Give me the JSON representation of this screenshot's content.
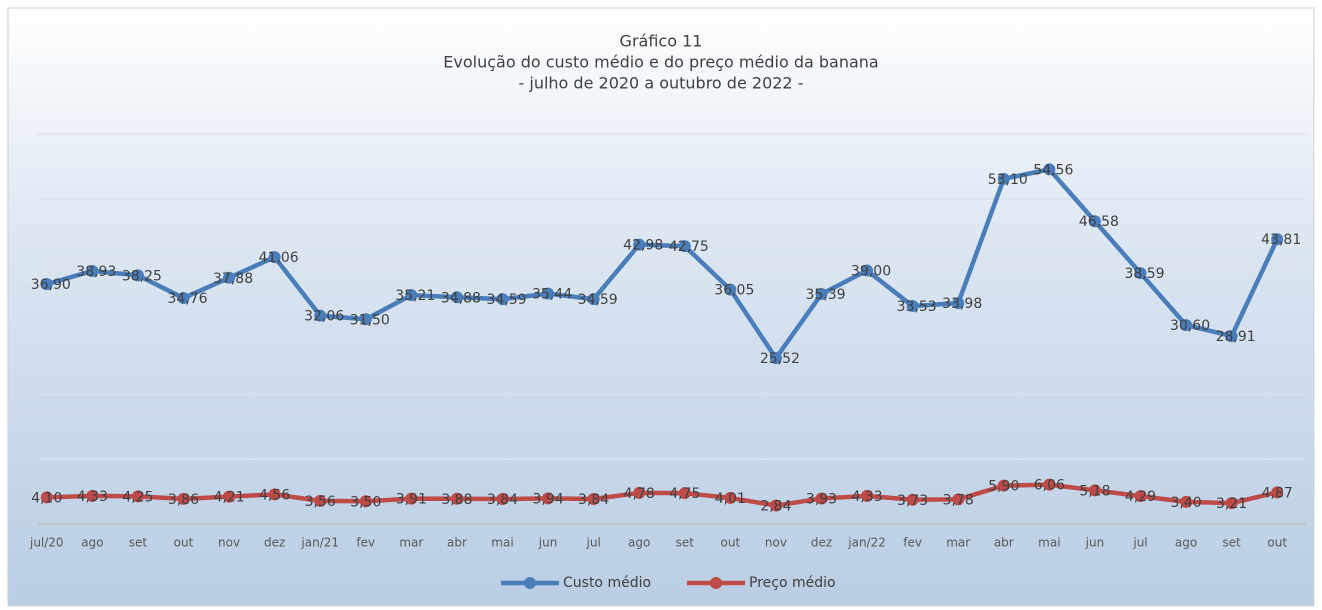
{
  "chart_data": {
    "type": "line",
    "title": [
      "Gráfico 11",
      "Evolução do custo médio e do preço médio da banana",
      "- julho de 2020 a outubro de 2022 -"
    ],
    "categories": [
      "jul/20",
      "ago",
      "set",
      "out",
      "nov",
      "dez",
      "jan/21",
      "fev",
      "mar",
      "abr",
      "mai",
      "jun",
      "jul",
      "ago",
      "set",
      "out",
      "nov",
      "dez",
      "jan/22",
      "fev",
      "mar",
      "abr",
      "mai",
      "jun",
      "jul",
      "ago",
      "set",
      "out"
    ],
    "series": [
      {
        "name": "Custo médio",
        "color": "#4a7ebb",
        "values": [
          36.9,
          38.93,
          38.25,
          34.76,
          37.88,
          41.06,
          32.06,
          31.5,
          35.21,
          34.88,
          34.59,
          35.44,
          34.59,
          42.98,
          42.75,
          36.05,
          25.52,
          35.39,
          39.0,
          33.53,
          33.98,
          53.1,
          54.56,
          46.58,
          38.59,
          30.6,
          28.91,
          43.81
        ],
        "value_labels": [
          "36,90",
          "38,93",
          "38,25",
          "34,76",
          "37,88",
          "41,06",
          "32,06",
          "31,50",
          "35,21",
          "34,88",
          "34,59",
          "35,44",
          "34,59",
          "42,98",
          "42,75",
          "36,05",
          "25,52",
          "35,39",
          "39,00",
          "33,53",
          "33,98",
          "53,10",
          "54,56",
          "46,58",
          "38,59",
          "30,60",
          "28,91",
          "43,81"
        ]
      },
      {
        "name": "Preço médio",
        "color": "#be4b48",
        "values": [
          4.1,
          4.33,
          4.25,
          3.86,
          4.21,
          4.56,
          3.56,
          3.5,
          3.91,
          3.88,
          3.84,
          3.94,
          3.84,
          4.78,
          4.75,
          4.01,
          2.84,
          3.93,
          4.33,
          3.73,
          3.78,
          5.9,
          6.06,
          5.18,
          4.29,
          3.4,
          3.21,
          4.87
        ],
        "value_labels": [
          "4,10",
          "4,33",
          "4,25",
          "3,86",
          "4,21",
          "4,56",
          "3,56",
          "3,50",
          "3,91",
          "3,88",
          "3,84",
          "3,94",
          "3,84",
          "4,78",
          "4,75",
          "4,01",
          "2,84",
          "3,93",
          "4,33",
          "3,73",
          "3,78",
          "5,90",
          "6,06",
          "5,18",
          "4,29",
          "3,40",
          "3,21",
          "4,87"
        ]
      }
    ],
    "ylim": [
      0,
      60
    ],
    "yticks": [
      0,
      10,
      20,
      30,
      40,
      50,
      60
    ],
    "grid": true,
    "legend": "bottom"
  }
}
